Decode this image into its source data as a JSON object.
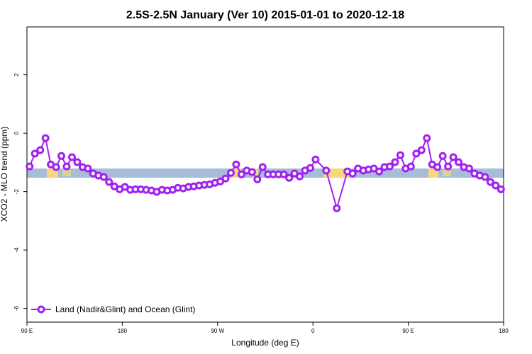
{
  "chart_data": {
    "type": "line",
    "title": "2.5S-2.5N January (Ver 10)   2015-01-01 to 2020-12-18",
    "x_label": "Longitude (deg E)",
    "y_label": "XCO2 - MLO trend (ppm)",
    "xlim": [
      90,
      540
    ],
    "ylim": [
      -6.47,
      3.64
    ],
    "xticks": [
      {
        "value": 90,
        "label": "90 E"
      },
      180,
      {
        "value": 270,
        "label": "90 W"
      },
      {
        "value": 360,
        "label": "0"
      },
      {
        "value": 450,
        "label": "90 E"
      },
      {
        "value": 540,
        "label": "180"
      }
    ],
    "yticks": [
      2,
      0,
      -2,
      -4,
      -6
    ],
    "legend": "bottom-left",
    "x": [
      92.5,
      97.5,
      102.5,
      107.5,
      112.5,
      117.5,
      122.5,
      127.5,
      132.5,
      137.5,
      142.5,
      147.5,
      152.5,
      157.5,
      162.5,
      167.5,
      172.5,
      177.5,
      182.5,
      187.5,
      192.5,
      197.5,
      202.5,
      207.5,
      212.5,
      217.5,
      222.5,
      227.5,
      232.5,
      237.5,
      242.5,
      247.5,
      252.5,
      257.5,
      262.5,
      267.5,
      272.5,
      277.5,
      282.5,
      287.5,
      292.5,
      297.5,
      302.5,
      307.5,
      312.5,
      317.5,
      322.5,
      327.5,
      332.5,
      337.5,
      342.5,
      347.5,
      352.5,
      357.5,
      362.5,
      372.5,
      382.5,
      392.5,
      397.5,
      402.5,
      407.5,
      412.5,
      417.5,
      422.5,
      427.5,
      432.5,
      437.5,
      442.5,
      447.5,
      452.5,
      457.5,
      462.5,
      467.5,
      472.5,
      477.5,
      482.5,
      487.5,
      492.5,
      497.5,
      502.5,
      507.5,
      512.5,
      517.5,
      522.5,
      527.5,
      532.5,
      537.5
    ],
    "series": [
      {
        "name": "Land (Nadir&Glint) and Ocean (Glint)",
        "color": "#a020f0",
        "values": [
          -1.14,
          -0.7,
          -0.58,
          -0.17,
          -1.07,
          -1.16,
          -0.78,
          -1.14,
          -0.82,
          -0.99,
          -1.16,
          -1.21,
          -1.38,
          -1.45,
          -1.5,
          -1.67,
          -1.82,
          -1.92,
          -1.84,
          -1.94,
          -1.92,
          -1.92,
          -1.94,
          -1.96,
          -2.01,
          -1.94,
          -1.96,
          -1.94,
          -1.87,
          -1.89,
          -1.84,
          -1.82,
          -1.79,
          -1.77,
          -1.75,
          -1.7,
          -1.65,
          -1.55,
          -1.36,
          -1.07,
          -1.41,
          -1.28,
          -1.33,
          -1.58,
          -1.16,
          -1.41,
          -1.41,
          -1.41,
          -1.41,
          -1.53,
          -1.38,
          -1.48,
          -1.28,
          -1.19,
          -0.9,
          -1.28,
          -2.57,
          -1.31,
          -1.38,
          -1.21,
          -1.28,
          -1.24,
          -1.21,
          -1.31,
          -1.16,
          -1.14,
          -0.99,
          -0.75,
          -1.21,
          -1.14,
          -0.7,
          -0.58,
          -0.17,
          -1.07,
          -1.16,
          -0.78,
          -1.14,
          -0.82,
          -0.99,
          -1.16,
          -1.21,
          -1.38,
          -1.45,
          -1.5,
          -1.67,
          -1.79,
          -1.92
        ]
      }
    ]
  }
}
